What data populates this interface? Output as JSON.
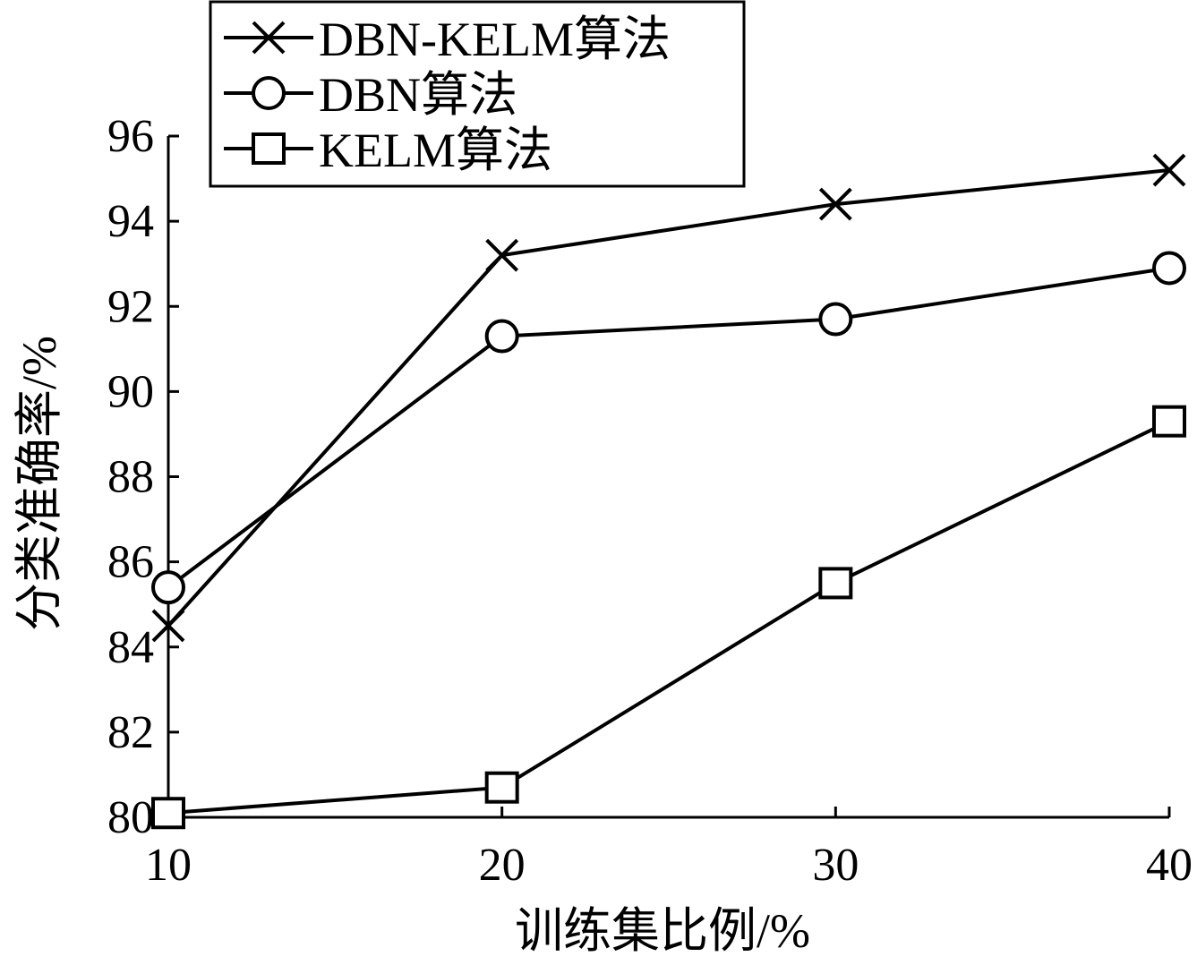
{
  "chart_data": {
    "type": "line",
    "xlabel": "训练集比例/%",
    "ylabel": "分类准确率/%",
    "x": [
      10,
      20,
      30,
      40
    ],
    "x_ticks": [
      "10",
      "20",
      "30",
      "40"
    ],
    "y_ticks": [
      "80",
      "82",
      "84",
      "86",
      "88",
      "90",
      "92",
      "94",
      "96"
    ],
    "xlim": [
      10,
      40
    ],
    "ylim": [
      80,
      96
    ],
    "grid": false,
    "legend_position": "top-left",
    "series": [
      {
        "name": "DBN-KELM算法",
        "marker": "x",
        "values": [
          84.5,
          93.2,
          94.4,
          95.2
        ]
      },
      {
        "name": "DBN算法",
        "marker": "circle",
        "values": [
          85.4,
          91.3,
          91.7,
          92.9
        ]
      },
      {
        "name": "KELM算法",
        "marker": "square",
        "values": [
          80.1,
          80.7,
          85.5,
          89.3
        ]
      }
    ],
    "colors": {
      "line": "#000000",
      "background": "#ffffff"
    }
  }
}
